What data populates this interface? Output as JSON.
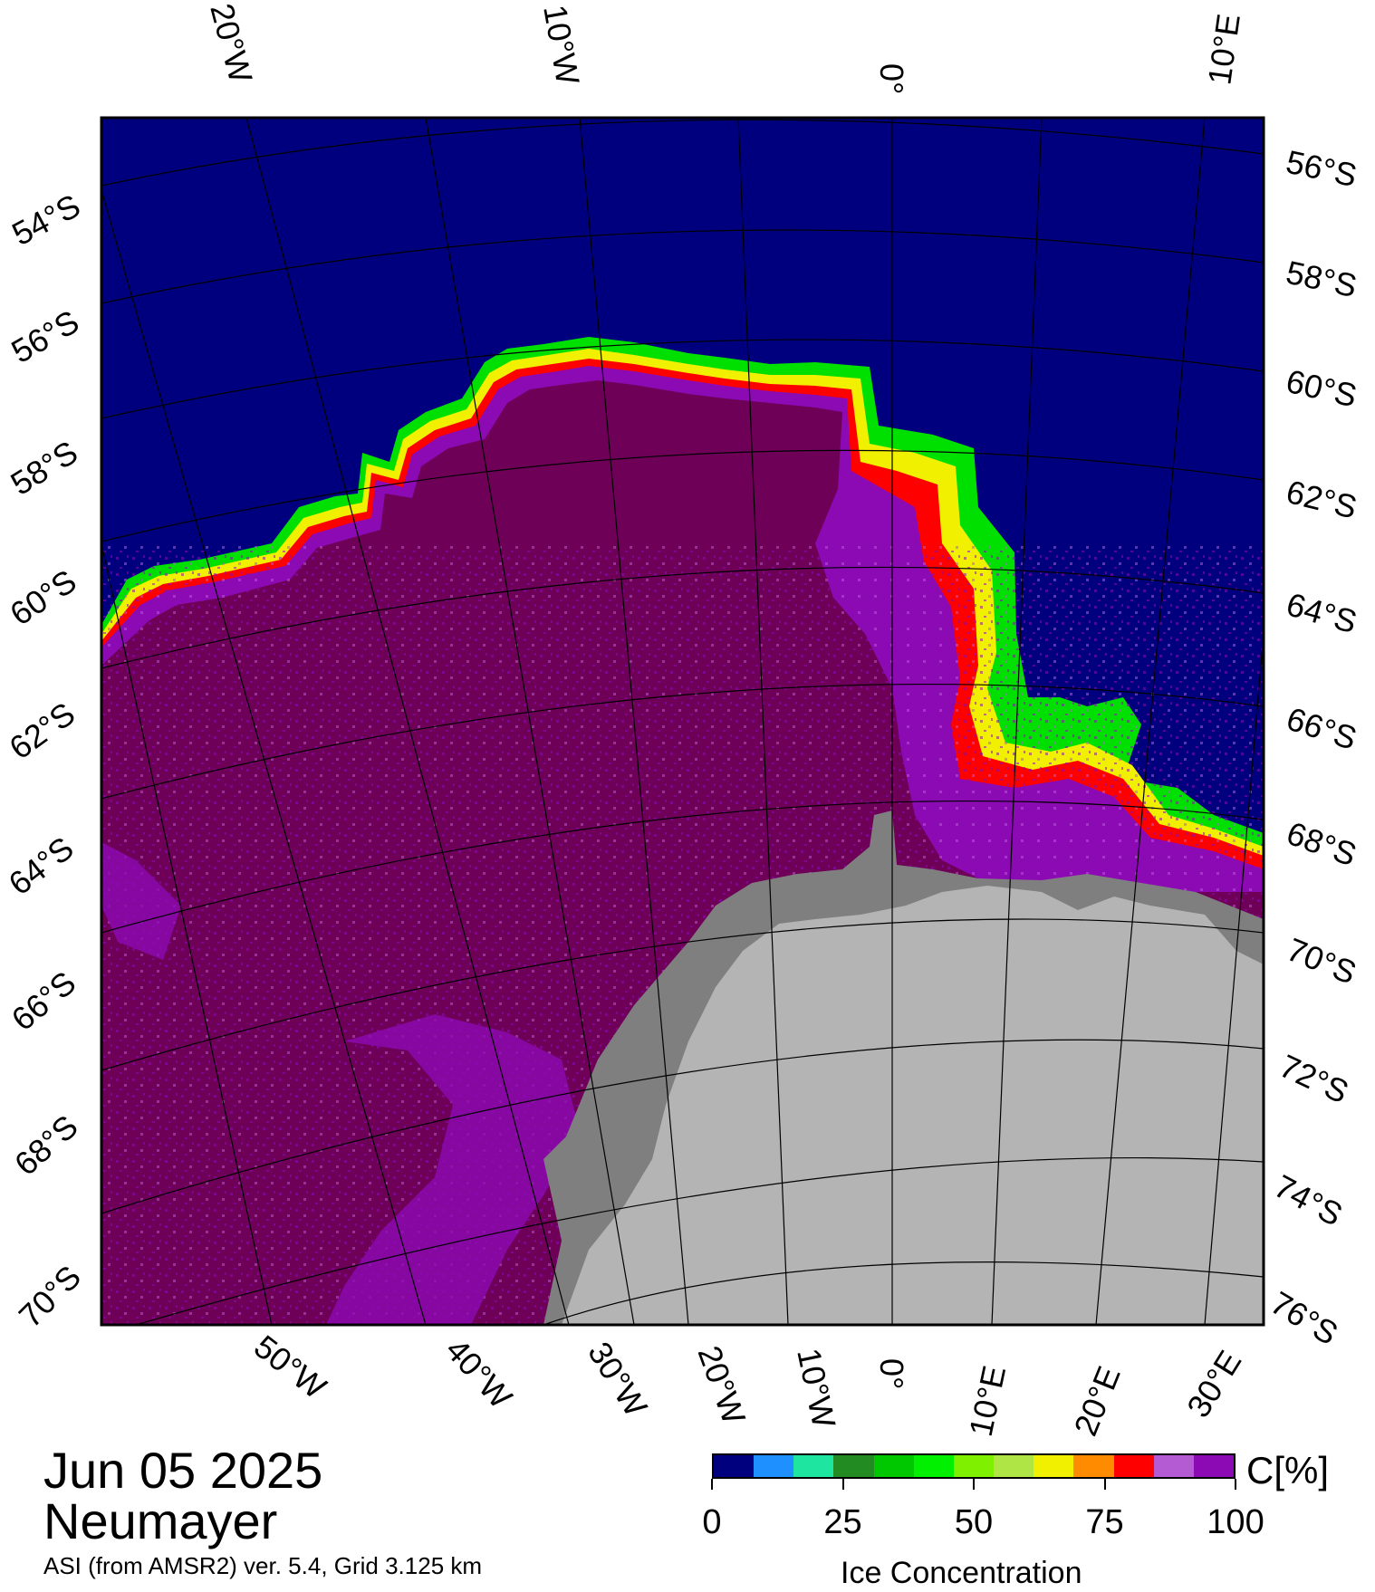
{
  "map": {
    "title": "Jun 05 2025",
    "station": "Neumayer",
    "product_line": "ASI (from AMSR2) ver. 5.4,  Grid 3.125 km",
    "top_lon_labels": [
      "20°W",
      "10°W",
      "0°",
      "10°E"
    ],
    "bottom_lon_labels": [
      "50°W",
      "40°W",
      "30°W",
      "20°W",
      "10°W",
      "0°",
      "10°E",
      "20°E",
      "30°E"
    ],
    "left_lat_labels": [
      "54°S",
      "56°S",
      "58°S",
      "60°S",
      "62°S",
      "64°S",
      "66°S",
      "68°S",
      "70°S"
    ],
    "right_lat_labels": [
      "56°S",
      "58°S",
      "60°S",
      "62°S",
      "64°S",
      "66°S",
      "68°S",
      "70°S",
      "72°S",
      "74°S",
      "76°S"
    ],
    "colors": {
      "ocean": "#00007f",
      "pack_ice": "#6e0058",
      "ice_purple": "#8c0ab4",
      "ice_light_purple": "#b45ad2",
      "ice_shelf": "#7f7f7f",
      "land": "#b4b4b4"
    }
  },
  "colorbar": {
    "unit": "C[%]",
    "title": "Ice Concentration",
    "ticks": [
      "0",
      "25",
      "50",
      "75",
      "100"
    ],
    "colors": [
      "#00007f",
      "#1e90ff",
      "#1ee6a0",
      "#228b22",
      "#00c800",
      "#00f000",
      "#7ff000",
      "#afe646",
      "#f0f000",
      "#ff8c00",
      "#ff0000",
      "#b45ad2",
      "#8c0ab4"
    ]
  }
}
